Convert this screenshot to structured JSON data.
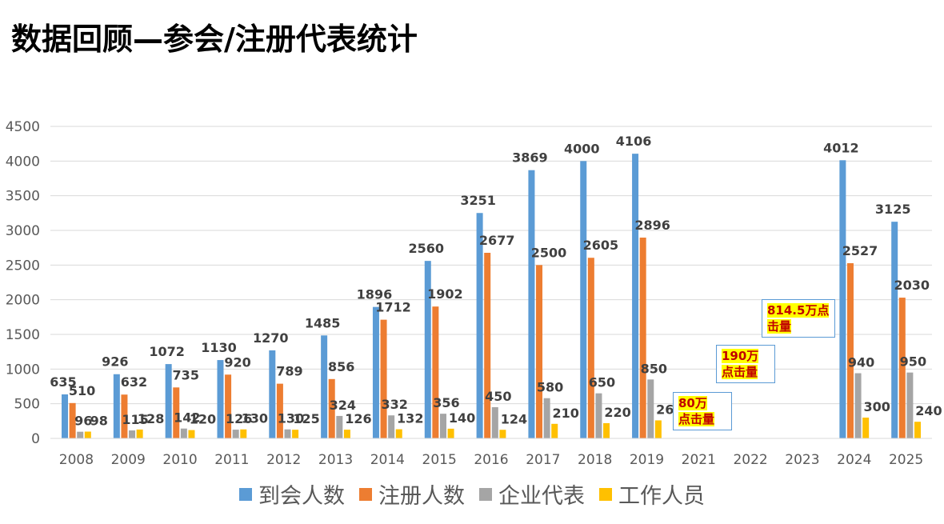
{
  "title": "数据回顾—参会/注册代表统计",
  "colors": {
    "series": [
      "#5b9bd5",
      "#ed7d31",
      "#a5a5a5",
      "#ffc000"
    ],
    "grid": "#d9d9d9",
    "tick_text": "#595959",
    "label_text": "#404040"
  },
  "chart_data": {
    "type": "bar",
    "categories": [
      "2008",
      "2009",
      "2010",
      "2011",
      "2012",
      "2013",
      "2014",
      "2015",
      "2016",
      "2017",
      "2018",
      "2019",
      "2021",
      "2022",
      "2023",
      "2024",
      "2025"
    ],
    "ylim": [
      0,
      4500
    ],
    "yticks": [
      0,
      500,
      1000,
      1500,
      2000,
      2500,
      3000,
      3500,
      4000,
      4500
    ],
    "grid": true,
    "legend_position": "bottom",
    "series": [
      {
        "name": "到会人数",
        "values": [
          635,
          926,
          1072,
          1130,
          1270,
          1485,
          1896,
          2560,
          3251,
          3869,
          4000,
          4106,
          null,
          null,
          null,
          4012,
          3125
        ]
      },
      {
        "name": "注册人数",
        "values": [
          510,
          632,
          735,
          920,
          789,
          856,
          1712,
          1902,
          2677,
          2500,
          2605,
          2896,
          null,
          null,
          null,
          2527,
          2030
        ]
      },
      {
        "name": "企业代表",
        "values": [
          96,
          115,
          142,
          126,
          130,
          324,
          332,
          356,
          450,
          580,
          650,
          850,
          null,
          null,
          null,
          940,
          950
        ]
      },
      {
        "name": "工作人员",
        "values": [
          98,
          128,
          120,
          130,
          125,
          126,
          132,
          140,
          124,
          210,
          220,
          260,
          null,
          null,
          null,
          300,
          240
        ]
      }
    ],
    "annotations": [
      {
        "category": "2021",
        "text_lines": [
          "80万",
          "点击量"
        ]
      },
      {
        "category": "2022",
        "text_lines": [
          "190万",
          "点击量"
        ]
      },
      {
        "category": "2023",
        "text_lines": [
          "814.5万点",
          "击量"
        ]
      }
    ]
  }
}
